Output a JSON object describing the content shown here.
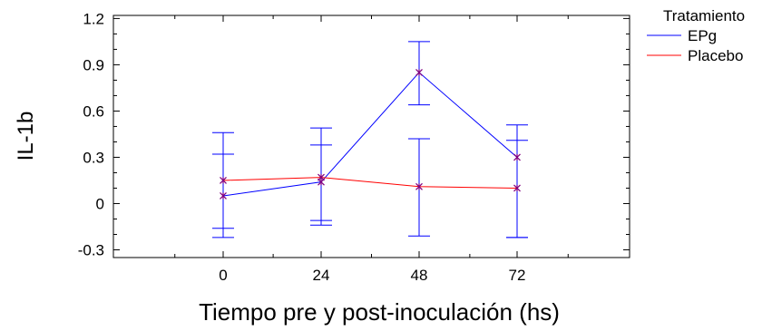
{
  "chart_data": {
    "type": "line",
    "xlabel": "Tiempo pre y post-inoculación (hs)",
    "ylabel": "IL-1b",
    "legend_title": "Tratamiento",
    "legend_position": "top-right",
    "grid": false,
    "x_ticks": [
      "0",
      "24",
      "48",
      "72"
    ],
    "y_ticks": [
      "-0.3",
      "0",
      "0.3",
      "0.6",
      "0.9",
      "1.2"
    ],
    "ylim": [
      -0.35,
      1.22
    ],
    "series": [
      {
        "name": "EPg",
        "color": "#0000ff",
        "x": [
          0,
          24,
          48,
          72
        ],
        "y": [
          0.05,
          0.14,
          0.85,
          0.3
        ],
        "ci_low": [
          -0.22,
          -0.11,
          0.64,
          -0.22
        ],
        "ci_high": [
          0.32,
          0.38,
          1.05,
          0.51
        ]
      },
      {
        "name": "Placebo",
        "color": "#ff0000",
        "x": [
          0,
          24,
          48,
          72
        ],
        "y": [
          0.15,
          0.17,
          0.11,
          0.1
        ],
        "ci_low": [
          -0.16,
          -0.14,
          -0.21,
          -0.22
        ],
        "ci_high": [
          0.46,
          0.49,
          0.42,
          0.41
        ]
      }
    ],
    "errorbar_color": "#0000ff",
    "marker_color": "#800080"
  }
}
